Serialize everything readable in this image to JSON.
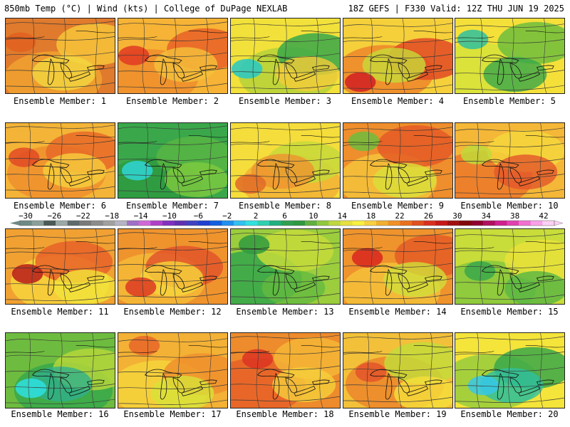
{
  "header": {
    "left": "850mb Temp (°C) | Wind (kts) | College of DuPage NEXLAB",
    "right": "18Z GEFS | F330 Valid: 12Z THU JUN 19 2025"
  },
  "members": [
    {
      "label": "Ensemble Member: 1",
      "palette": [
        "#e07a2c",
        "#f0a030",
        "#f6c43a",
        "#f3d740"
      ],
      "accent": "#e26020"
    },
    {
      "label": "Ensemble Member: 2",
      "palette": [
        "#f6b335",
        "#ef8f2c",
        "#e86227",
        "#f5c23b"
      ],
      "accent": "#e03a22"
    },
    {
      "label": "Ensemble Member: 3",
      "palette": [
        "#f2e13a",
        "#b9d33a",
        "#3aa84a",
        "#f5cc3a"
      ],
      "accent": "#26c8c8"
    },
    {
      "label": "Ensemble Member: 4",
      "palette": [
        "#f5d03b",
        "#ee8a2b",
        "#e24a24",
        "#c7db3a"
      ],
      "accent": "#d01e22"
    },
    {
      "label": "Ensemble Member: 5",
      "palette": [
        "#f5e03a",
        "#d8e23a",
        "#6fbd3d",
        "#3aa84a"
      ],
      "accent": "#2fbfa0"
    },
    {
      "label": "Ensemble Member: 6",
      "palette": [
        "#f4b437",
        "#ef912d",
        "#e86a28",
        "#f6cf3c"
      ],
      "accent": "#e24a24"
    },
    {
      "label": "Ensemble Member: 7",
      "palette": [
        "#3aa84a",
        "#2f9a40",
        "#58b543",
        "#7fca3f"
      ],
      "accent": "#2fd6d6"
    },
    {
      "label": "Ensemble Member: 8",
      "palette": [
        "#f5dd3b",
        "#f3b435",
        "#c7d93a",
        "#ee9330"
      ],
      "accent": "#e06a28"
    },
    {
      "label": "Ensemble Member: 9",
      "palette": [
        "#ee8e2c",
        "#f4c03a",
        "#e45a26",
        "#d8e13a"
      ],
      "accent": "#6fbd3d"
    },
    {
      "label": "Ensemble Member: 10",
      "palette": [
        "#f4b737",
        "#ec7a2a",
        "#f5d73c",
        "#e3562a"
      ],
      "accent": "#c0d93a"
    },
    {
      "label": "Ensemble Member: 11",
      "palette": [
        "#f0a132",
        "#f6d03b",
        "#e86228",
        "#f3e33a"
      ],
      "accent": "#b81a1a"
    },
    {
      "label": "Ensemble Member: 12",
      "palette": [
        "#ef932d",
        "#f4b837",
        "#e2552a",
        "#f6d63c"
      ],
      "accent": "#dc3a22"
    },
    {
      "label": "Ensemble Member: 13",
      "palette": [
        "#9bcd3d",
        "#3aa84a",
        "#c5db3a",
        "#64ba40"
      ],
      "accent": "#2f9a40"
    },
    {
      "label": "Ensemble Member: 14",
      "palette": [
        "#ef932d",
        "#f4bf38",
        "#e55c27",
        "#d1df3a"
      ],
      "accent": "#d8261f"
    },
    {
      "label": "Ensemble Member: 15",
      "palette": [
        "#c8dc3a",
        "#8ac83e",
        "#e8e23a",
        "#58b543"
      ],
      "accent": "#3aa84a"
    },
    {
      "label": "Ensemble Member: 16",
      "palette": [
        "#6ebc3f",
        "#3aa84a",
        "#b4d63b",
        "#31b08c"
      ],
      "accent": "#2ee0e0"
    },
    {
      "label": "Ensemble Member: 17",
      "palette": [
        "#f3b135",
        "#f5d33b",
        "#ee902d",
        "#d8e13a"
      ],
      "accent": "#e86628"
    },
    {
      "label": "Ensemble Member: 18",
      "palette": [
        "#ee8b2c",
        "#e76328",
        "#f4b636",
        "#f5d03b"
      ],
      "accent": "#dc3422"
    },
    {
      "label": "Ensemble Member: 19",
      "palette": [
        "#f3c03a",
        "#ec8a2c",
        "#c4da3a",
        "#f5de3b"
      ],
      "accent": "#e2552a"
    },
    {
      "label": "Ensemble Member: 20",
      "palette": [
        "#f5e43a",
        "#9ccd3d",
        "#3aa84a",
        "#2fbfa0"
      ],
      "accent": "#36c8e8"
    }
  ],
  "colorbar": {
    "ticks": [
      "−30",
      "−26",
      "−22",
      "−18",
      "−14",
      "−10",
      "−6",
      "−2",
      "2",
      "6",
      "10",
      "14",
      "18",
      "22",
      "26",
      "30",
      "34",
      "38",
      "42"
    ],
    "colors": [
      "#6e8a86",
      "#8a9e9a",
      "#4a5a58",
      "#9aa8a6",
      "#5e6a6a",
      "#7a7a7a",
      "#8c8c8c",
      "#a0a0a0",
      "#b4b4c4",
      "#a070c8",
      "#d068d8",
      "#b040c8",
      "#8030c0",
      "#6030b0",
      "#4040c0",
      "#2040d0",
      "#1060e0",
      "#2090f0",
      "#30c0f0",
      "#30e0e0",
      "#30d0b0",
      "#20b080",
      "#30a050",
      "#309840",
      "#60b040",
      "#90c840",
      "#c0d840",
      "#e8e040",
      "#f8f040",
      "#f8d040",
      "#f0b030",
      "#f09028",
      "#e87020",
      "#e05020",
      "#d83020",
      "#c81818",
      "#a01010",
      "#800808",
      "#900030",
      "#b01060",
      "#d02090",
      "#e040b0",
      "#f070d0",
      "#f8a0e8",
      "#fcd0f4"
    ]
  }
}
